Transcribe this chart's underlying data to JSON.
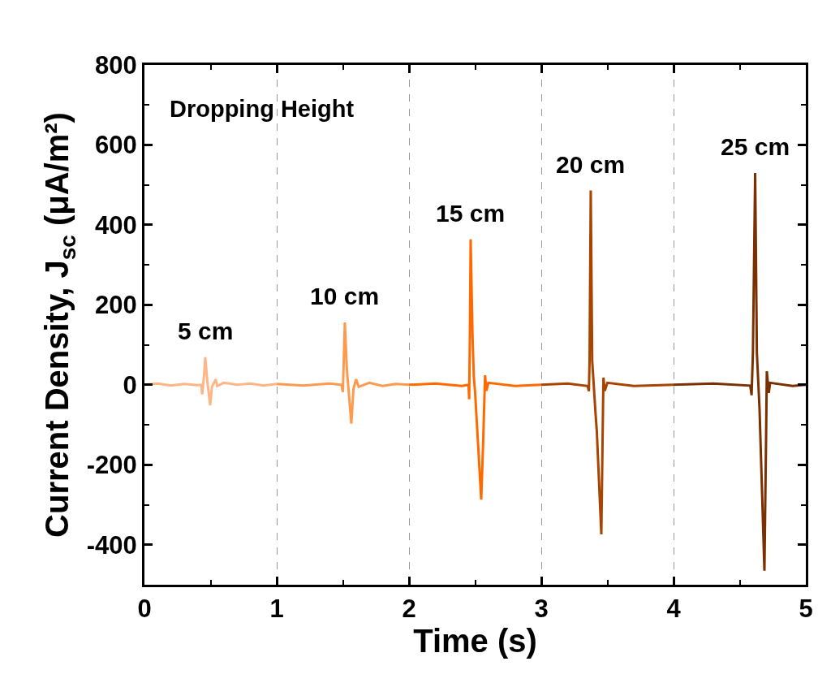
{
  "chart_data": {
    "type": "line",
    "xlabel": "Time (s)",
    "ylabel": "Current Density, J$_{sc}$ (μA/m²)",
    "annotations": [
      "Dropping Height"
    ],
    "xlim": [
      0,
      5
    ],
    "xticks": [
      0,
      1,
      2,
      3,
      4,
      5
    ],
    "ylim": [
      -500,
      800
    ],
    "yticks": [
      -400,
      -200,
      0,
      200,
      400,
      600,
      800
    ],
    "grid": "x",
    "legend": false,
    "marker": "none",
    "line_style": "solid",
    "series": [
      {
        "name": "5 cm",
        "color": "#ffb585",
        "x": [
          0,
          0.1,
          0.2,
          0.3,
          0.4,
          0.43,
          0.436,
          0.45,
          0.46,
          0.475,
          0.497,
          0.51,
          0.54,
          0.55,
          0.6,
          0.7,
          0.8,
          0.9,
          1.0
        ],
        "values": [
          0,
          3,
          -2,
          2,
          -1,
          0,
          -24,
          20,
          69,
          10,
          -51,
          -5,
          14,
          -3,
          5,
          0,
          3,
          -2,
          2
        ]
      },
      {
        "name": "10 cm",
        "color": "#ff9a4d",
        "x": [
          1.0,
          1.2,
          1.4,
          1.49,
          1.5,
          1.505,
          1.515,
          1.53,
          1.564,
          1.58,
          1.6,
          1.62,
          1.7,
          1.8,
          1.9,
          2.0
        ],
        "values": [
          2,
          -2,
          3,
          0,
          -18,
          40,
          156,
          40,
          -97,
          -10,
          14,
          -5,
          5,
          -3,
          2,
          0
        ]
      },
      {
        "name": "15 cm",
        "color": "#ff6a00",
        "x": [
          2.0,
          2.2,
          2.4,
          2.45,
          2.455,
          2.46,
          2.466,
          2.48,
          2.49,
          2.5,
          2.546,
          2.56,
          2.575,
          2.585,
          2.6,
          2.8,
          3.0
        ],
        "values": [
          0,
          3,
          -3,
          0,
          -36,
          120,
          364,
          125,
          20,
          -20,
          -287,
          -150,
          24,
          -15,
          5,
          -3,
          0
        ]
      },
      {
        "name": "20 cm",
        "color": "#a84300",
        "x": [
          3.0,
          3.2,
          3.35,
          3.36,
          3.365,
          3.374,
          3.385,
          3.41,
          3.42,
          3.454,
          3.465,
          3.47,
          3.48,
          3.5,
          3.7,
          4.0
        ],
        "values": [
          0,
          3,
          -3,
          -16,
          60,
          486,
          60,
          -70,
          -117,
          -374,
          -100,
          18,
          -15,
          5,
          -3,
          0
        ]
      },
      {
        "name": "25 cm",
        "color": "#7a3000",
        "x": [
          4.0,
          4.3,
          4.58,
          4.59,
          4.6,
          4.617,
          4.63,
          4.65,
          4.687,
          4.7,
          4.705,
          4.72,
          4.73,
          4.9,
          5.0
        ],
        "values": [
          0,
          3,
          -2,
          -26,
          80,
          530,
          80,
          -60,
          -465,
          -120,
          34,
          -20,
          5,
          -3,
          0
        ]
      }
    ]
  }
}
